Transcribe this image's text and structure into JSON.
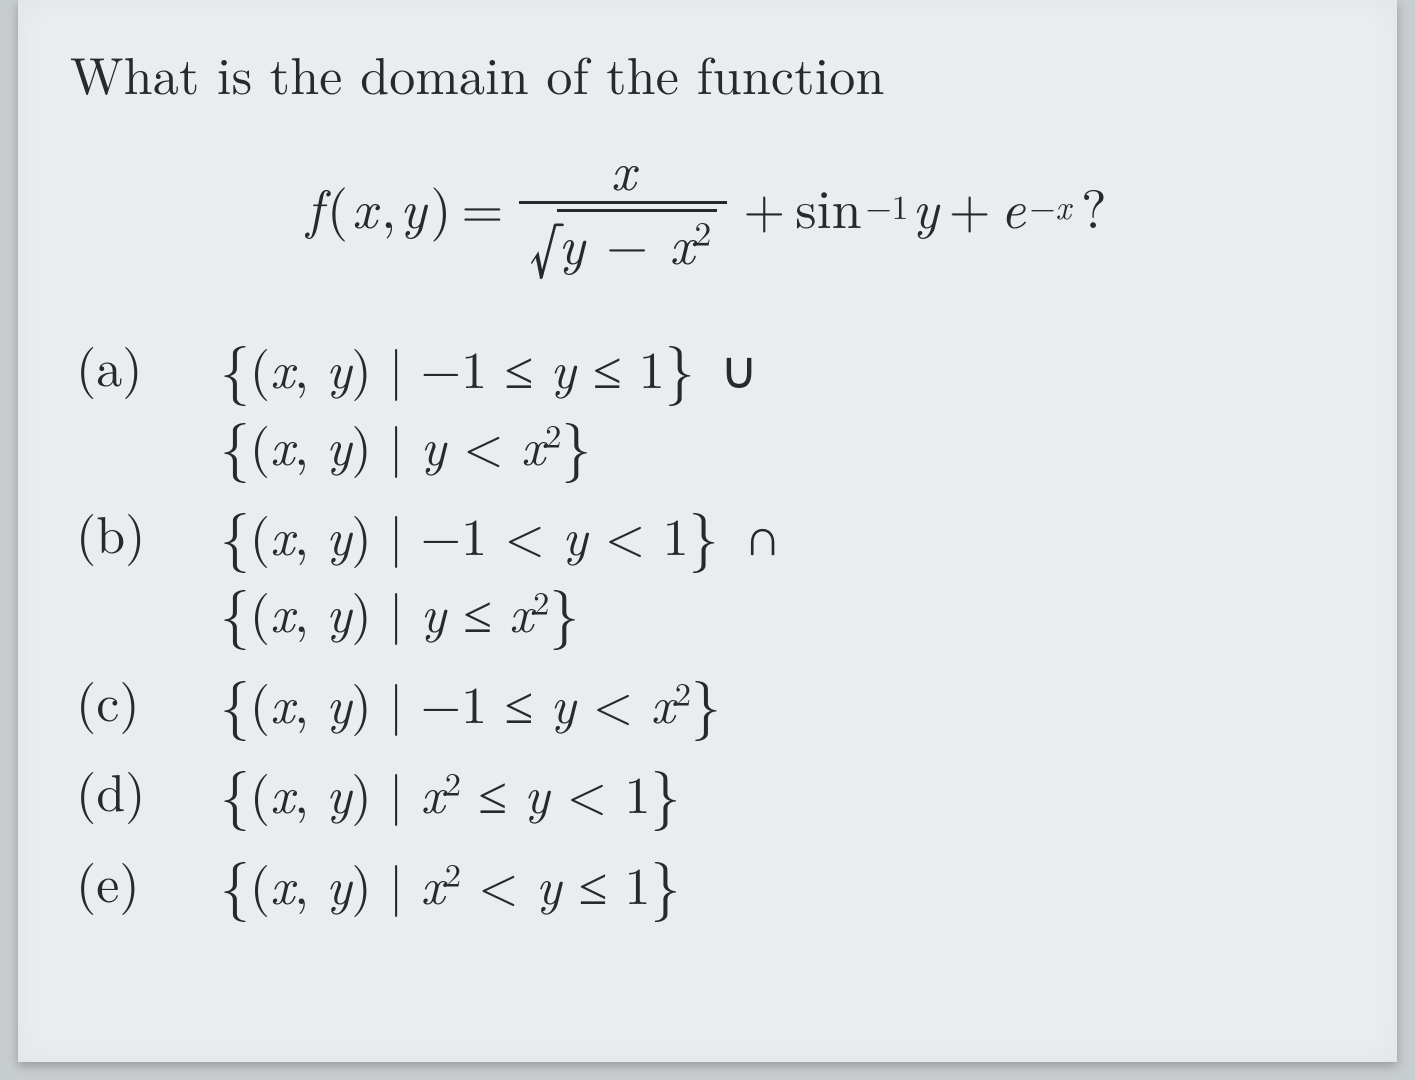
{
  "page": {
    "background_color": "#e9edee",
    "text_color": "#262a2c",
    "font_family": "Computer Modern / serif"
  },
  "question": {
    "prompt": "What is the domain of the function",
    "formula": {
      "lhs_func": "f",
      "lhs_open": "(",
      "lhs_var1": "x",
      "lhs_comma": ",",
      "lhs_var2": "y",
      "lhs_close": ")",
      "equals": "=",
      "frac_num": "x",
      "sqrt_sym": "√",
      "rad_y": "y",
      "rad_minus": "−",
      "rad_x": "x",
      "rad_exp": "2",
      "plus1": "+",
      "sin": "sin",
      "sin_exp": "−1",
      "sin_arg": "y",
      "plus2": "+",
      "e": "e",
      "e_exp_minus": "−",
      "e_exp_x": "x",
      "qmark": "?"
    }
  },
  "choices": {
    "a": {
      "label": "(a)",
      "line1": "{(x, y) | −1 ≤ y ≤ 1} ∪",
      "line2_open": "{",
      "line2_pair": "(x, y)",
      "line2_bar": " | ",
      "line2_y": "y",
      "line2_lt": " < ",
      "line2_x": "x",
      "line2_exp": "2",
      "line2_close": "}"
    },
    "b": {
      "label": "(b)",
      "line1": "{(x, y) | −1 < y < 1} ∩",
      "line2_open": "{",
      "line2_pair": "(x, y)",
      "line2_bar": " | ",
      "line2_y": "y",
      "line2_le": " ≤ ",
      "line2_x": "x",
      "line2_exp": "2",
      "line2_close": "}"
    },
    "c": {
      "label": "(c)",
      "open": "{",
      "pair": "(x, y)",
      "bar": " | ",
      "m1": "−1",
      "le": " ≤ ",
      "y": "y",
      "lt": " < ",
      "x": "x",
      "exp": "2",
      "close": "}"
    },
    "d": {
      "label": "(d)",
      "open": "{",
      "pair": "(x, y)",
      "bar": " | ",
      "x": "x",
      "exp": "2",
      "le": " ≤ ",
      "y": "y",
      "lt": " < ",
      "one": "1",
      "close": "}"
    },
    "e": {
      "label": "(e)",
      "open": "{",
      "pair": "(x, y)",
      "bar": " | ",
      "x": "x",
      "exp": "2",
      "lt": " < ",
      "y": "y",
      "le": " ≤ ",
      "one": "1",
      "close": "}"
    }
  }
}
